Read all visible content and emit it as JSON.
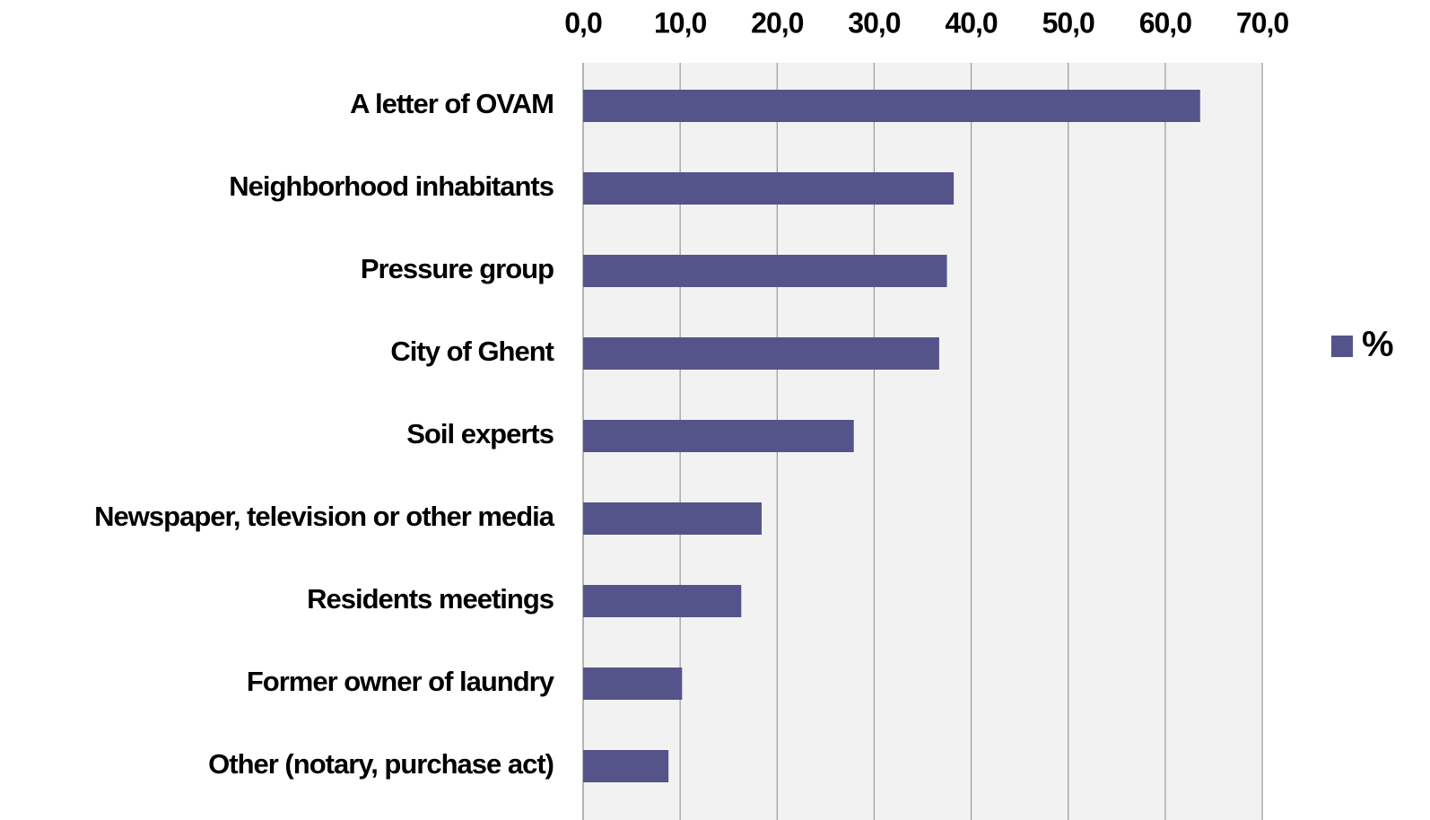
{
  "chart_data": {
    "type": "bar",
    "orientation": "horizontal",
    "categories": [
      "A letter of OVAM",
      "Neighborhood inhabitants",
      "Pressure group",
      "City of Ghent",
      "Soil experts",
      "Newspaper, television or other media",
      "Residents meetings",
      "Former owner of laundry",
      "Other (notary, purchase act)"
    ],
    "series": [
      {
        "name": "%",
        "color": "#55548a",
        "values": [
          63.6,
          38.2,
          37.5,
          36.7,
          27.9,
          18.4,
          16.3,
          10.2,
          8.8
        ]
      }
    ],
    "xlim": [
      0,
      70
    ],
    "xticks": [
      {
        "value": 0,
        "label": "0,0"
      },
      {
        "value": 10,
        "label": "10,0"
      },
      {
        "value": 20,
        "label": "20,0"
      },
      {
        "value": 30,
        "label": "30,0"
      },
      {
        "value": 40,
        "label": "40,0"
      },
      {
        "value": 50,
        "label": "50,0"
      },
      {
        "value": 60,
        "label": "60,0"
      },
      {
        "value": 70,
        "label": "70,0"
      }
    ],
    "grid": true,
    "legend": "right"
  }
}
